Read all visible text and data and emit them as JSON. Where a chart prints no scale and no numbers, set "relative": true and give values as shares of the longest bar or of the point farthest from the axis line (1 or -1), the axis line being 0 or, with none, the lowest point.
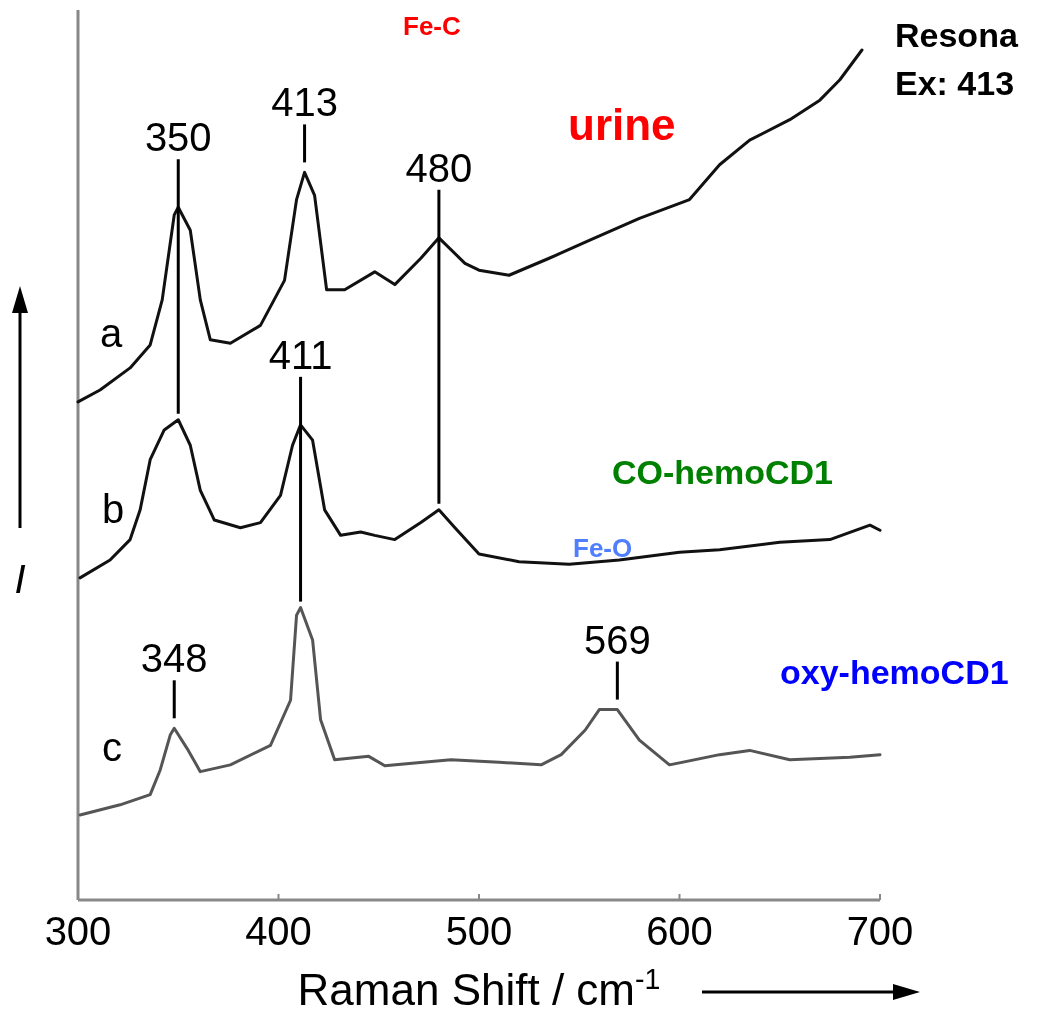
{
  "chart_data": {
    "type": "line",
    "relative": true,
    "xlabel": "Raman Shift / cm$^{-1}$",
    "ylabel": "I",
    "xlim": [
      300,
      700
    ],
    "xticks": [
      300,
      400,
      500,
      600,
      700
    ],
    "tick_labels": "x",
    "grid": false,
    "series": [
      {
        "name": "a",
        "color": "#111111",
        "x": [
          300,
          311,
          326,
          336,
          342,
          348,
          350,
          356,
          361,
          366,
          376,
          391,
          403,
          409,
          413,
          418,
          424,
          433,
          448,
          458,
          471,
          480,
          493,
          500,
          515,
          535,
          555,
          580,
          605,
          620,
          635,
          655,
          670,
          680,
          691
        ],
        "values": [
          0.586,
          0.6,
          0.626,
          0.653,
          0.706,
          0.806,
          0.815,
          0.788,
          0.706,
          0.659,
          0.655,
          0.676,
          0.729,
          0.824,
          0.856,
          0.829,
          0.718,
          0.718,
          0.739,
          0.724,
          0.755,
          0.779,
          0.749,
          0.741,
          0.735,
          0.755,
          0.776,
          0.802,
          0.824,
          0.865,
          0.894,
          0.918,
          0.941,
          0.965,
          1.0
        ]
      },
      {
        "name": "b",
        "color": "#111111",
        "x": [
          301,
          316,
          326,
          331,
          336,
          343,
          350,
          356,
          361,
          368,
          381,
          391,
          401,
          407,
          411,
          417,
          423,
          431,
          441,
          448,
          458,
          471,
          480,
          488,
          500,
          520,
          545,
          570,
          600,
          620,
          650,
          675,
          695,
          700
        ],
        "values": [
          0.379,
          0.4,
          0.424,
          0.459,
          0.518,
          0.553,
          0.565,
          0.535,
          0.482,
          0.447,
          0.438,
          0.444,
          0.476,
          0.535,
          0.559,
          0.541,
          0.459,
          0.429,
          0.433,
          0.429,
          0.424,
          0.444,
          0.459,
          0.438,
          0.407,
          0.398,
          0.395,
          0.4,
          0.409,
          0.412,
          0.421,
          0.424,
          0.441,
          0.435
        ]
      },
      {
        "name": "c",
        "color": "#555555",
        "x": [
          301,
          321,
          336,
          341,
          346,
          348,
          355,
          361,
          376,
          396,
          406,
          409,
          411,
          417,
          421,
          428,
          445,
          453,
          486,
          510,
          531,
          541,
          553,
          560,
          569,
          580,
          595,
          620,
          635,
          655,
          685,
          700
        ],
        "values": [
          0.1,
          0.112,
          0.124,
          0.153,
          0.194,
          0.202,
          0.176,
          0.151,
          0.159,
          0.182,
          0.235,
          0.335,
          0.344,
          0.306,
          0.212,
          0.165,
          0.169,
          0.158,
          0.165,
          0.162,
          0.159,
          0.171,
          0.2,
          0.224,
          0.224,
          0.188,
          0.159,
          0.171,
          0.176,
          0.165,
          0.168,
          0.171
        ]
      }
    ],
    "annotations": [
      {
        "text": "350",
        "x": 350,
        "y": 0.815
      },
      {
        "text": "413",
        "x": 413,
        "y": 0.856
      },
      {
        "text": "480",
        "x": 480,
        "y": 0.779
      },
      {
        "text": "411",
        "x": 411,
        "y": 0.559
      },
      {
        "text": "348",
        "x": 348,
        "y": 0.202
      },
      {
        "text": "569",
        "x": 569,
        "y": 0.224
      },
      "Fe-C",
      "urine",
      "CO-hemoCD1",
      "Fe-O",
      "oxy-hemoCD1",
      "Resona",
      "Ex: 413"
    ]
  }
}
